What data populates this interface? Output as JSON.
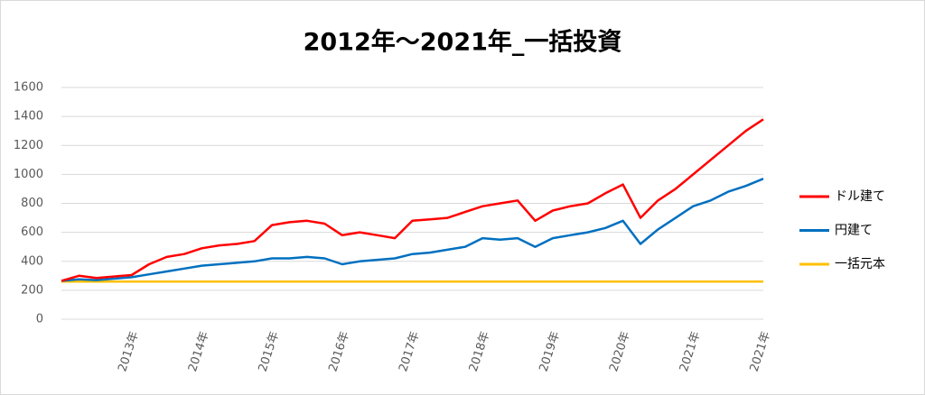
{
  "chart_data": {
    "type": "line",
    "title": "2012年～2021年_一括投資",
    "categories": [
      null,
      null,
      null,
      null,
      "2013年",
      null,
      null,
      null,
      "2014年",
      null,
      null,
      null,
      "2015年",
      null,
      null,
      null,
      "2016年",
      null,
      null,
      null,
      "2017年",
      null,
      null,
      null,
      "2018年",
      null,
      null,
      null,
      "2019年",
      null,
      null,
      null,
      "2020年",
      null,
      null,
      null,
      "2021年",
      null,
      null,
      null,
      "2021年"
    ],
    "series": [
      {
        "name": "ドル建て",
        "color": "#ff0000",
        "values": [
          265,
          300,
          285,
          295,
          305,
          380,
          430,
          450,
          490,
          510,
          520,
          540,
          650,
          670,
          680,
          660,
          580,
          600,
          580,
          560,
          680,
          690,
          700,
          740,
          780,
          800,
          820,
          680,
          750,
          780,
          800,
          870,
          930,
          700,
          820,
          900,
          1000,
          1100,
          1200,
          1300,
          1380
        ]
      },
      {
        "name": "円建て",
        "color": "#0070c0",
        "values": [
          265,
          275,
          270,
          280,
          290,
          310,
          330,
          350,
          370,
          380,
          390,
          400,
          420,
          420,
          430,
          420,
          380,
          400,
          410,
          420,
          450,
          460,
          480,
          500,
          560,
          550,
          560,
          500,
          560,
          580,
          600,
          630,
          680,
          520,
          620,
          700,
          780,
          820,
          880,
          920,
          970
        ]
      },
      {
        "name": "一括元本",
        "color": "#ffc000",
        "values": [
          260,
          260,
          260,
          260,
          260,
          260,
          260,
          260,
          260,
          260,
          260,
          260,
          260,
          260,
          260,
          260,
          260,
          260,
          260,
          260,
          260,
          260,
          260,
          260,
          260,
          260,
          260,
          260,
          260,
          260,
          260,
          260,
          260,
          260,
          260,
          260,
          260,
          260,
          260,
          260,
          260
        ]
      }
    ],
    "ylim": [
      0,
      1600
    ],
    "yticks": [
      0,
      200,
      400,
      600,
      800,
      1000,
      1200,
      1400,
      1600
    ],
    "grid": true,
    "legend": "right"
  }
}
